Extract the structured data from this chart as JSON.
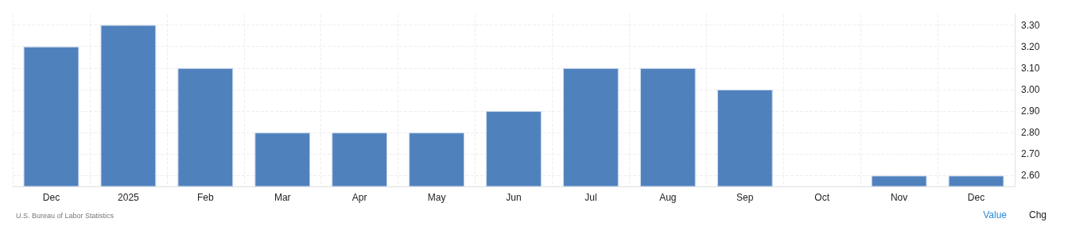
{
  "chart_data": {
    "type": "bar",
    "categories": [
      "Dec",
      "2025",
      "Feb",
      "Mar",
      "Apr",
      "May",
      "Jun",
      "Jul",
      "Aug",
      "Sep",
      "Oct",
      "Nov",
      "Dec"
    ],
    "values": [
      3.2,
      3.3,
      3.1,
      2.8,
      2.8,
      2.8,
      2.9,
      3.1,
      3.1,
      3.0,
      null,
      2.6,
      2.6
    ],
    "color": "#4f81bd",
    "ylim": [
      2.55,
      3.35
    ],
    "yticks": [
      {
        "value": 2.6,
        "label": "2.60"
      },
      {
        "value": 2.7,
        "label": "2.70"
      },
      {
        "value": 2.8,
        "label": "2.80"
      },
      {
        "value": 2.9,
        "label": "2.90"
      },
      {
        "value": 3.0,
        "label": "3.00"
      },
      {
        "value": 3.1,
        "label": "3.10"
      },
      {
        "value": 3.2,
        "label": "3.20"
      },
      {
        "value": 3.3,
        "label": "3.30"
      }
    ],
    "grid": true,
    "annotations": [
      "U.S. Bureau of Labor Statistics",
      "Value",
      "Chg"
    ]
  }
}
